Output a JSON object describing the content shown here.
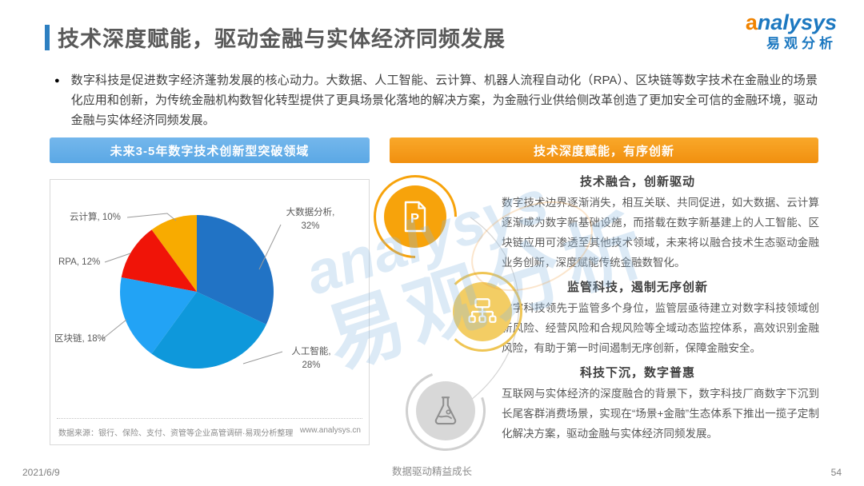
{
  "page": {
    "title": "技术深度赋能，驱动金融与实体经济同频发展",
    "date": "2021/6/9",
    "footer_slogan": "数据驱动精益成长",
    "page_number": "54"
  },
  "logo": {
    "brand": "analysys",
    "brand_cn": "易观分析"
  },
  "intro_bullet": "数字科技是促进数字经济蓬勃发展的核心动力。大数据、人工智能、云计算、机器人流程自动化（RPA）、区块链等数字技术在金融业的场景化应用和创新，为传统金融机构数智化转型提供了更具场景化落地的解决方案，为金融行业供给侧改革创造了更加安全可信的金融环境，驱动金融与实体经济同频发展。",
  "left_panel": {
    "header": "未来3-5年数字技术创新型突破领域",
    "source": "数据来源：银行、保险、支付、资管等企业高管调研·易观分析整理",
    "website": "www.analysys.cn"
  },
  "chart_data": {
    "type": "pie",
    "title": "未来3-5年数字技术创新型突破领域",
    "unit": "%",
    "start_angle_deg": 0,
    "direction": "clockwise",
    "slices": [
      {
        "label": "大数据分析",
        "value": 32,
        "color": "#2173c5",
        "display": "大数据分析, 32%"
      },
      {
        "label": "人工智能",
        "value": 28,
        "color": "#0e98db",
        "display": "人工智能, 28%"
      },
      {
        "label": "区块链",
        "value": 18,
        "color": "#22a3f5",
        "display": "区块链, 18%"
      },
      {
        "label": "RPA",
        "value": 12,
        "color": "#f01408",
        "display": "RPA, 12%"
      },
      {
        "label": "云计算",
        "value": 10,
        "color": "#f8ab00",
        "display": "云计算, 10%"
      }
    ]
  },
  "right_panel": {
    "header": "技术深度赋能，有序创新",
    "sections": [
      {
        "icon": "document-p-icon",
        "icon_letter": "P",
        "heading": "技术融合，创新驱动",
        "body": "数字技术边界逐渐消失，相互关联、共同促进，如大数据、云计算逐渐成为数字新基础设施，而搭载在数字新基建上的人工智能、区块链应用可渗透至其他技术领域，未来将以融合技术生态驱动金融业务创新，深度赋能传统金融数智化。"
      },
      {
        "icon": "network-icon",
        "heading": "监管科技，遏制无序创新",
        "body": "数字科技领先于监管多个身位，监管层亟待建立对数字科技领域创新风险、经营风险和合规风险等全域动态监控体系，高效识别金融风险，有助于第一时间遏制无序创新，保障金融安全。"
      },
      {
        "icon": "flask-icon",
        "heading": "科技下沉，数字普惠",
        "body": "互联网与实体经济的深度融合的背景下，数字科技厂商数字下沉到长尾客群消费场景，实现在“场景+金融”生态体系下推出一揽子定制化解决方案，驱动金融与实体经济同频发展。"
      }
    ]
  }
}
